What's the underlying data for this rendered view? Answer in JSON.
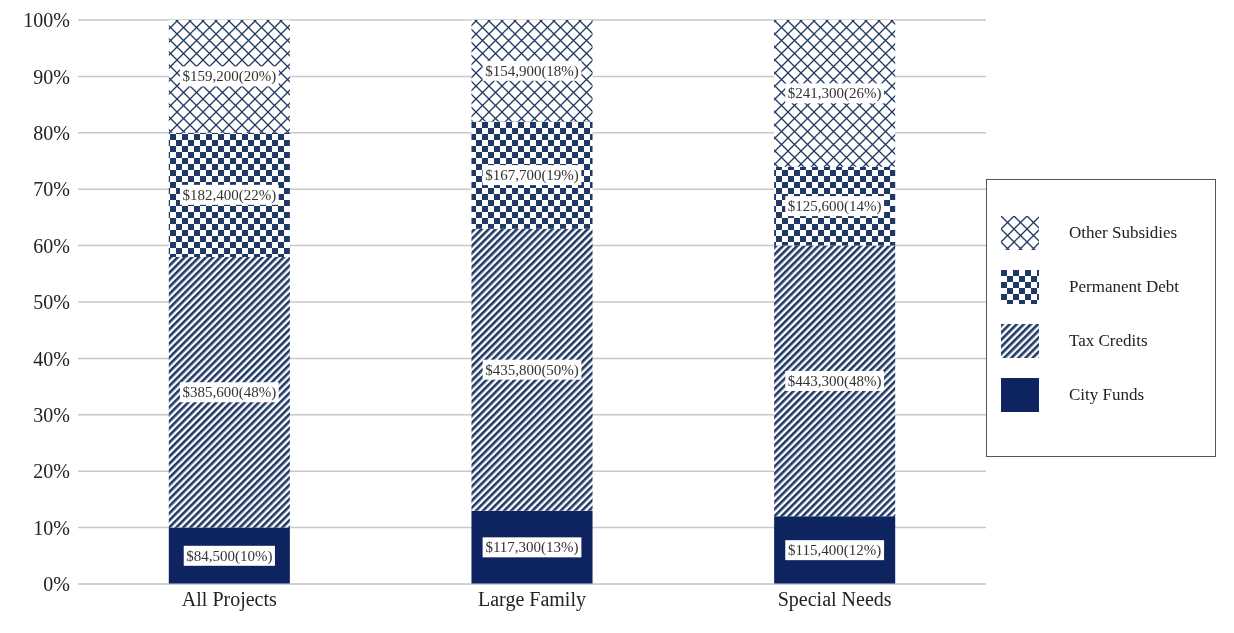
{
  "chart_data": {
    "type": "bar",
    "stacked": true,
    "categories": [
      "All Projects",
      "Large Family",
      "Special Needs"
    ],
    "series": [
      {
        "name": "City Funds",
        "color": "#0d2460",
        "values": [
          10,
          13,
          12
        ],
        "value_labels": [
          "$84,500(10%)",
          "$117,300(13%)",
          "$115,400(12%)"
        ]
      },
      {
        "name": "Tax Credits",
        "color": "#1f3864",
        "values": [
          48,
          50,
          48
        ],
        "value_labels": [
          "$385,600(48%)",
          "$435,800(50%)",
          "$443,300(48%)"
        ]
      },
      {
        "name": "Permanent Debt",
        "color": "#1f3864",
        "values": [
          22,
          19,
          14
        ],
        "value_labels": [
          "$182,400(22%)",
          "$167,700(19%)",
          "$125,600(14%)"
        ]
      },
      {
        "name": "Other Subsidies",
        "color": "#1f3864",
        "values": [
          20,
          18,
          26
        ],
        "value_labels": [
          "$159,200(20%)",
          "$154,900(18%)",
          "$241,300(26%)"
        ]
      }
    ],
    "ylim": [
      0,
      100
    ],
    "yticks": [
      {
        "value": 0,
        "label": "0%"
      },
      {
        "value": 10,
        "label": "10%"
      },
      {
        "value": 20,
        "label": "20%"
      },
      {
        "value": 30,
        "label": "30%"
      },
      {
        "value": 40,
        "label": "40%"
      },
      {
        "value": 50,
        "label": "50%"
      },
      {
        "value": 60,
        "label": "60%"
      },
      {
        "value": 70,
        "label": "70%"
      },
      {
        "value": 80,
        "label": "80%"
      },
      {
        "value": 90,
        "label": "90%"
      },
      {
        "value": 100,
        "label": "100%"
      }
    ],
    "grid": "y",
    "legend": "right"
  }
}
